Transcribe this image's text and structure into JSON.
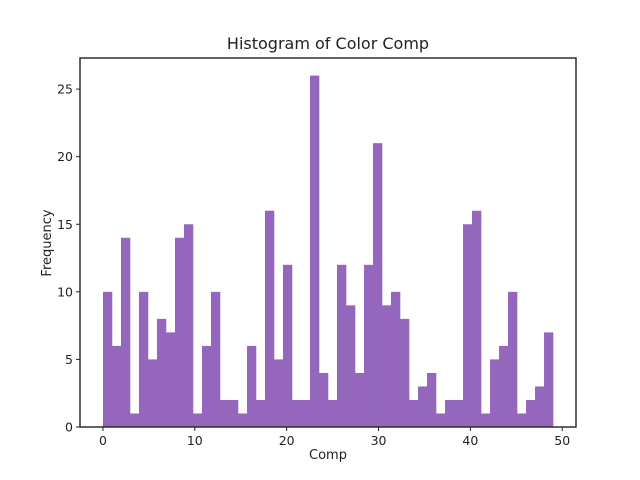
{
  "chart_data": {
    "type": "bar",
    "title": "Histogram of Color Comp",
    "xlabel": "Comp",
    "ylabel": "Frequency",
    "bar_color": "#9467bd",
    "grid": false,
    "xlim": [
      -2.5,
      51.5
    ],
    "ylim": [
      0,
      27.3
    ],
    "bin_edges_start": 0,
    "bin_width": 0.98,
    "x_ticks": [
      0,
      10,
      20,
      30,
      40,
      50
    ],
    "y_ticks": [
      0,
      5,
      10,
      15,
      20,
      25
    ],
    "values": [
      10,
      6,
      14,
      1,
      10,
      5,
      8,
      7,
      14,
      15,
      1,
      6,
      10,
      2,
      2,
      1,
      6,
      2,
      16,
      5,
      12,
      2,
      2,
      26,
      4,
      2,
      12,
      9,
      4,
      12,
      21,
      9,
      10,
      8,
      2,
      3,
      4,
      1,
      2,
      2,
      15,
      16,
      1,
      5,
      6,
      10,
      1,
      2,
      3,
      7
    ]
  }
}
